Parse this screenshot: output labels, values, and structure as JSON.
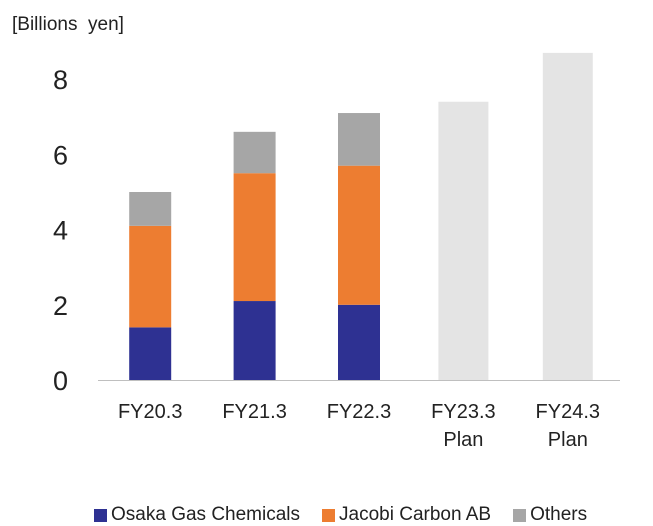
{
  "chart_data": {
    "type": "bar",
    "stacked": true,
    "unit_label": "[Billions  yen]",
    "categories": [
      [
        "FY20.3"
      ],
      [
        "FY21.3"
      ],
      [
        "FY22.3"
      ],
      [
        "FY23.3",
        "Plan"
      ],
      [
        "FY24.3",
        "Plan"
      ]
    ],
    "y_ticks": [
      0,
      2,
      4,
      6,
      8
    ],
    "ylim": [
      0,
      8.8
    ],
    "series": [
      {
        "name": "Osaka Gas Chemicals",
        "color": "#2e3192",
        "values": [
          1.4,
          2.1,
          2.0,
          null,
          null
        ]
      },
      {
        "name": "Jacobi Carbon AB",
        "color": "#ed7d31",
        "values": [
          2.7,
          3.4,
          3.7,
          null,
          null
        ]
      },
      {
        "name": "Others",
        "color": "#a6a6a6",
        "values": [
          0.9,
          1.1,
          1.4,
          null,
          null
        ]
      }
    ],
    "totals_only": {
      "color": "#e4e4e4",
      "values": [
        null,
        null,
        null,
        7.4,
        8.7
      ]
    }
  }
}
